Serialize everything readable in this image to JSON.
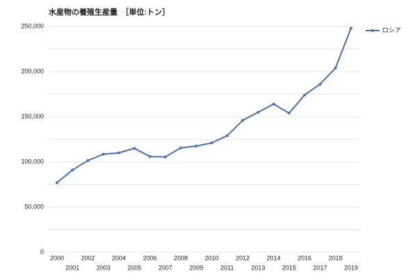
{
  "chart_data": {
    "type": "line",
    "title": "水産物の養殖生産量　［単位:トン］",
    "categories": [
      "2000",
      "2001",
      "2002",
      "2003",
      "2004",
      "2005",
      "2006",
      "2007",
      "2008",
      "2009",
      "2010",
      "2011",
      "2012",
      "2013",
      "2014",
      "2015",
      "2016",
      "2017",
      "2018",
      "2019"
    ],
    "series": [
      {
        "name": "ロシア",
        "color": "#4a6fb5",
        "values": [
          77000,
          91000,
          101500,
          108500,
          110000,
          115000,
          106000,
          105500,
          115500,
          117500,
          121000,
          129000,
          146000,
          155000,
          164000,
          154000,
          174000,
          186000,
          204000,
          248000
        ]
      }
    ],
    "ylim": [
      0,
      250000
    ],
    "yticks": [
      0,
      {
        "value": 50000,
        "label": "50,000"
      },
      {
        "value": 100000,
        "label": "100,000"
      },
      {
        "value": 150000,
        "label": "150,000"
      },
      {
        "value": 200000,
        "label": "200,000"
      },
      {
        "value": 250000,
        "label": "250,000"
      }
    ],
    "minor_yticks": [
      25000,
      75000,
      125000,
      175000,
      225000
    ],
    "grid": true,
    "legend": "right"
  }
}
